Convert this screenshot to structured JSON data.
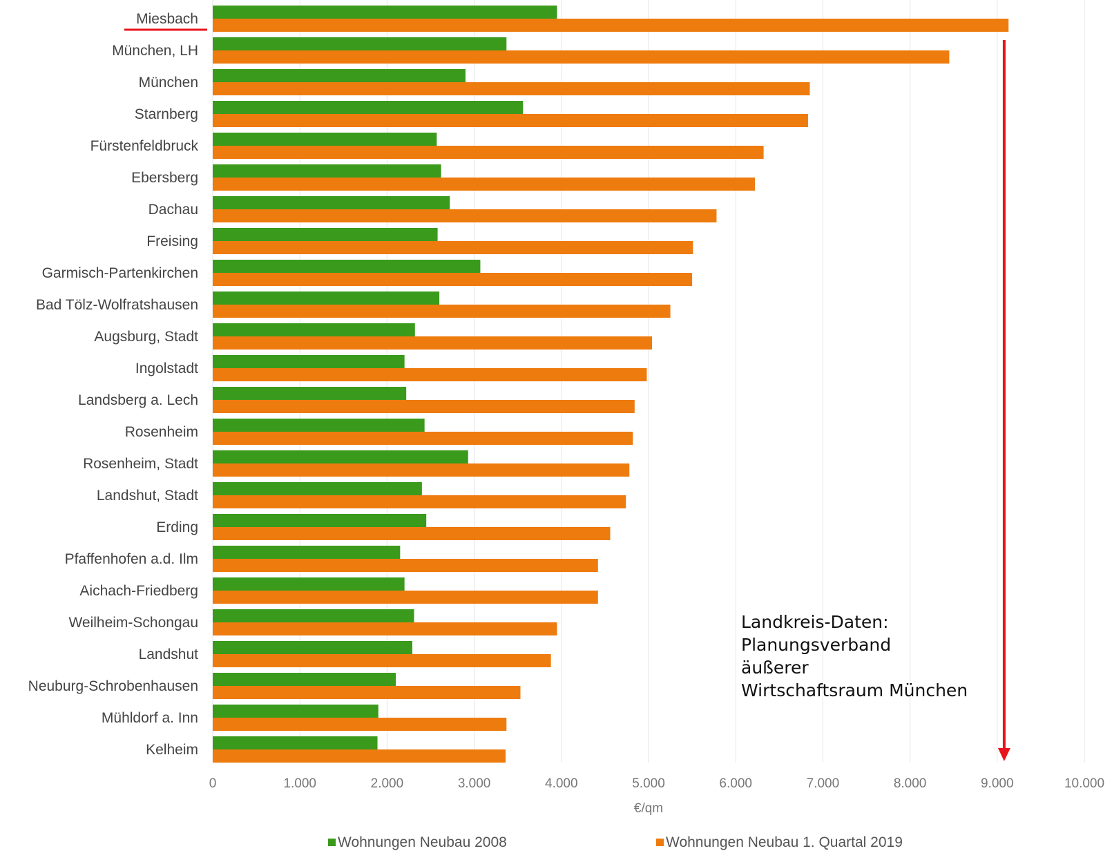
{
  "chart_data": {
    "type": "bar",
    "orientation": "horizontal",
    "categories": [
      "Miesbach",
      "München, LH",
      "München",
      "Starnberg",
      "Fürstenfeldbruck",
      "Ebersberg",
      "Dachau",
      "Freising",
      "Garmisch-Partenkirchen",
      "Bad Tölz-Wolfratshausen",
      "Augsburg, Stadt",
      "Ingolstadt",
      "Landsberg a. Lech",
      "Rosenheim",
      "Rosenheim, Stadt",
      "Landshut, Stadt",
      "Erding",
      "Pfaffenhofen a.d. Ilm",
      "Aichach-Friedberg",
      "Weilheim-Schongau",
      "Landshut",
      "Neuburg-Schrobenhausen",
      "Mühldorf a. Inn",
      "Kelheim"
    ],
    "series": [
      {
        "name": "Wohnungen Neubau 2008",
        "color": "#3a9a1c",
        "values": [
          3950,
          3370,
          2900,
          3560,
          2570,
          2620,
          2720,
          2580,
          3070,
          2600,
          2320,
          2200,
          2220,
          2430,
          2930,
          2400,
          2450,
          2150,
          2200,
          2310,
          2290,
          2100,
          1900,
          1890
        ]
      },
      {
        "name": "Wohnungen Neubau 1. Quartal 2019",
        "color": "#ee7b0e",
        "values": [
          9130,
          8450,
          6850,
          6830,
          6320,
          6220,
          5780,
          5510,
          5500,
          5250,
          5040,
          4980,
          4840,
          4820,
          4780,
          4740,
          4560,
          4420,
          4420,
          3950,
          3880,
          3530,
          3370,
          3360
        ]
      }
    ],
    "xlabel": "€/qm",
    "ylabel": "",
    "xlim": [
      0,
      10000
    ],
    "xticks": [
      "0",
      "1.000",
      "2.000",
      "3.000",
      "4.000",
      "5.000",
      "6.000",
      "7.000",
      "8.000",
      "9.000",
      "10.000"
    ],
    "grid": "vertical",
    "legend_position": "bottom",
    "highlighted_category": "Miesbach",
    "highlight_color": "#e8141c",
    "annotation": {
      "lines": [
        "Landkreis-Daten:",
        "Planungsverband",
        "äußerer",
        "Wirtschaftsraum München"
      ],
      "arrow_value": 9080
    }
  }
}
